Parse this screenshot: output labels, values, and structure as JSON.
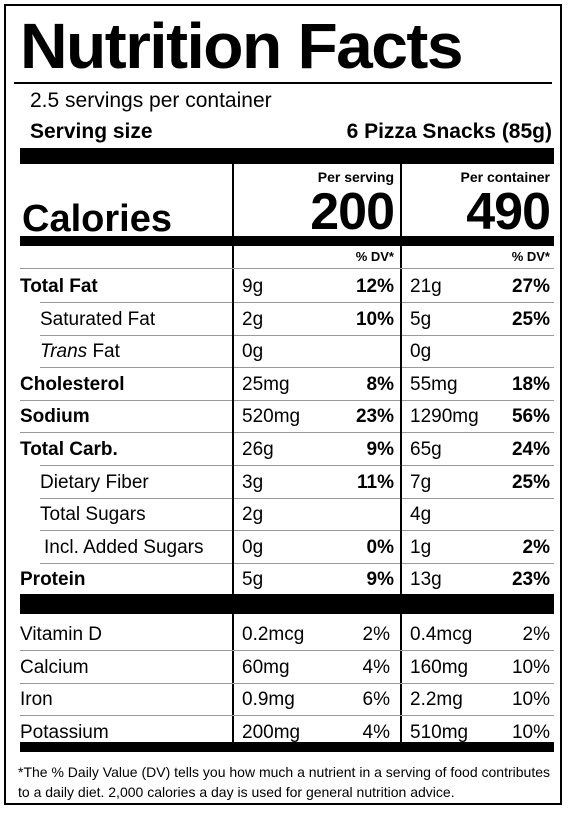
{
  "title": "Nutrition Facts",
  "servings_per_container": "2.5 servings per container",
  "serving_size_label": "Serving size",
  "serving_size_value": "6 Pizza Snacks (85g)",
  "col_per_serving": "Per serving",
  "col_per_container": "Per container",
  "calories_label": "Calories",
  "calories_per_serving": "200",
  "calories_per_container": "490",
  "dv_header": "% DV*",
  "nutrients": [
    {
      "name": "Total Fat",
      "bold": true,
      "indent": 0,
      "s_amt": "9g",
      "s_dv": "12%",
      "c_amt": "21g",
      "c_dv": "27%"
    },
    {
      "name": "Saturated Fat",
      "bold": false,
      "indent": 1,
      "s_amt": "2g",
      "s_dv": "10%",
      "c_amt": "5g",
      "c_dv": "25%"
    },
    {
      "name": "Trans Fat",
      "bold": false,
      "indent": 1,
      "italic_prefix": "Trans",
      "s_amt": "0g",
      "s_dv": "",
      "c_amt": "0g",
      "c_dv": ""
    },
    {
      "name": "Cholesterol",
      "bold": true,
      "indent": 0,
      "s_amt": "25mg",
      "s_dv": "8%",
      "c_amt": "55mg",
      "c_dv": "18%"
    },
    {
      "name": "Sodium",
      "bold": true,
      "indent": 0,
      "s_amt": "520mg",
      "s_dv": "23%",
      "c_amt": "1290mg",
      "c_dv": "56%"
    },
    {
      "name": "Total Carb.",
      "bold": true,
      "indent": 0,
      "s_amt": "26g",
      "s_dv": "9%",
      "c_amt": "65g",
      "c_dv": "24%"
    },
    {
      "name": "Dietary Fiber",
      "bold": false,
      "indent": 1,
      "s_amt": "3g",
      "s_dv": "11%",
      "c_amt": "7g",
      "c_dv": "25%"
    },
    {
      "name": "Total Sugars",
      "bold": false,
      "indent": 1,
      "s_amt": "2g",
      "s_dv": "",
      "c_amt": "4g",
      "c_dv": ""
    },
    {
      "name": "Incl. Added Sugars",
      "bold": false,
      "indent": 2,
      "s_amt": "0g",
      "s_dv": "0%",
      "c_amt": "1g",
      "c_dv": "2%"
    },
    {
      "name": "Protein",
      "bold": true,
      "indent": 0,
      "s_amt": "5g",
      "s_dv": "9%",
      "c_amt": "13g",
      "c_dv": "23%"
    }
  ],
  "vitamins": [
    {
      "name": "Vitamin D",
      "s_amt": "0.2mcg",
      "s_dv": "2%",
      "c_amt": "0.4mcg",
      "c_dv": "2%"
    },
    {
      "name": "Calcium",
      "s_amt": "60mg",
      "s_dv": "4%",
      "c_amt": "160mg",
      "c_dv": "10%"
    },
    {
      "name": "Iron",
      "s_amt": "0.9mg",
      "s_dv": "6%",
      "c_amt": "2.2mg",
      "c_dv": "10%"
    },
    {
      "name": "Potassium",
      "s_amt": "200mg",
      "s_dv": "4%",
      "c_amt": "510mg",
      "c_dv": "10%"
    }
  ],
  "footnote": "*The % Daily Value (DV) tells you how much a nutrient in a serving of food contributes to a daily diet. 2,000 calories a day is used for general nutrition advice."
}
